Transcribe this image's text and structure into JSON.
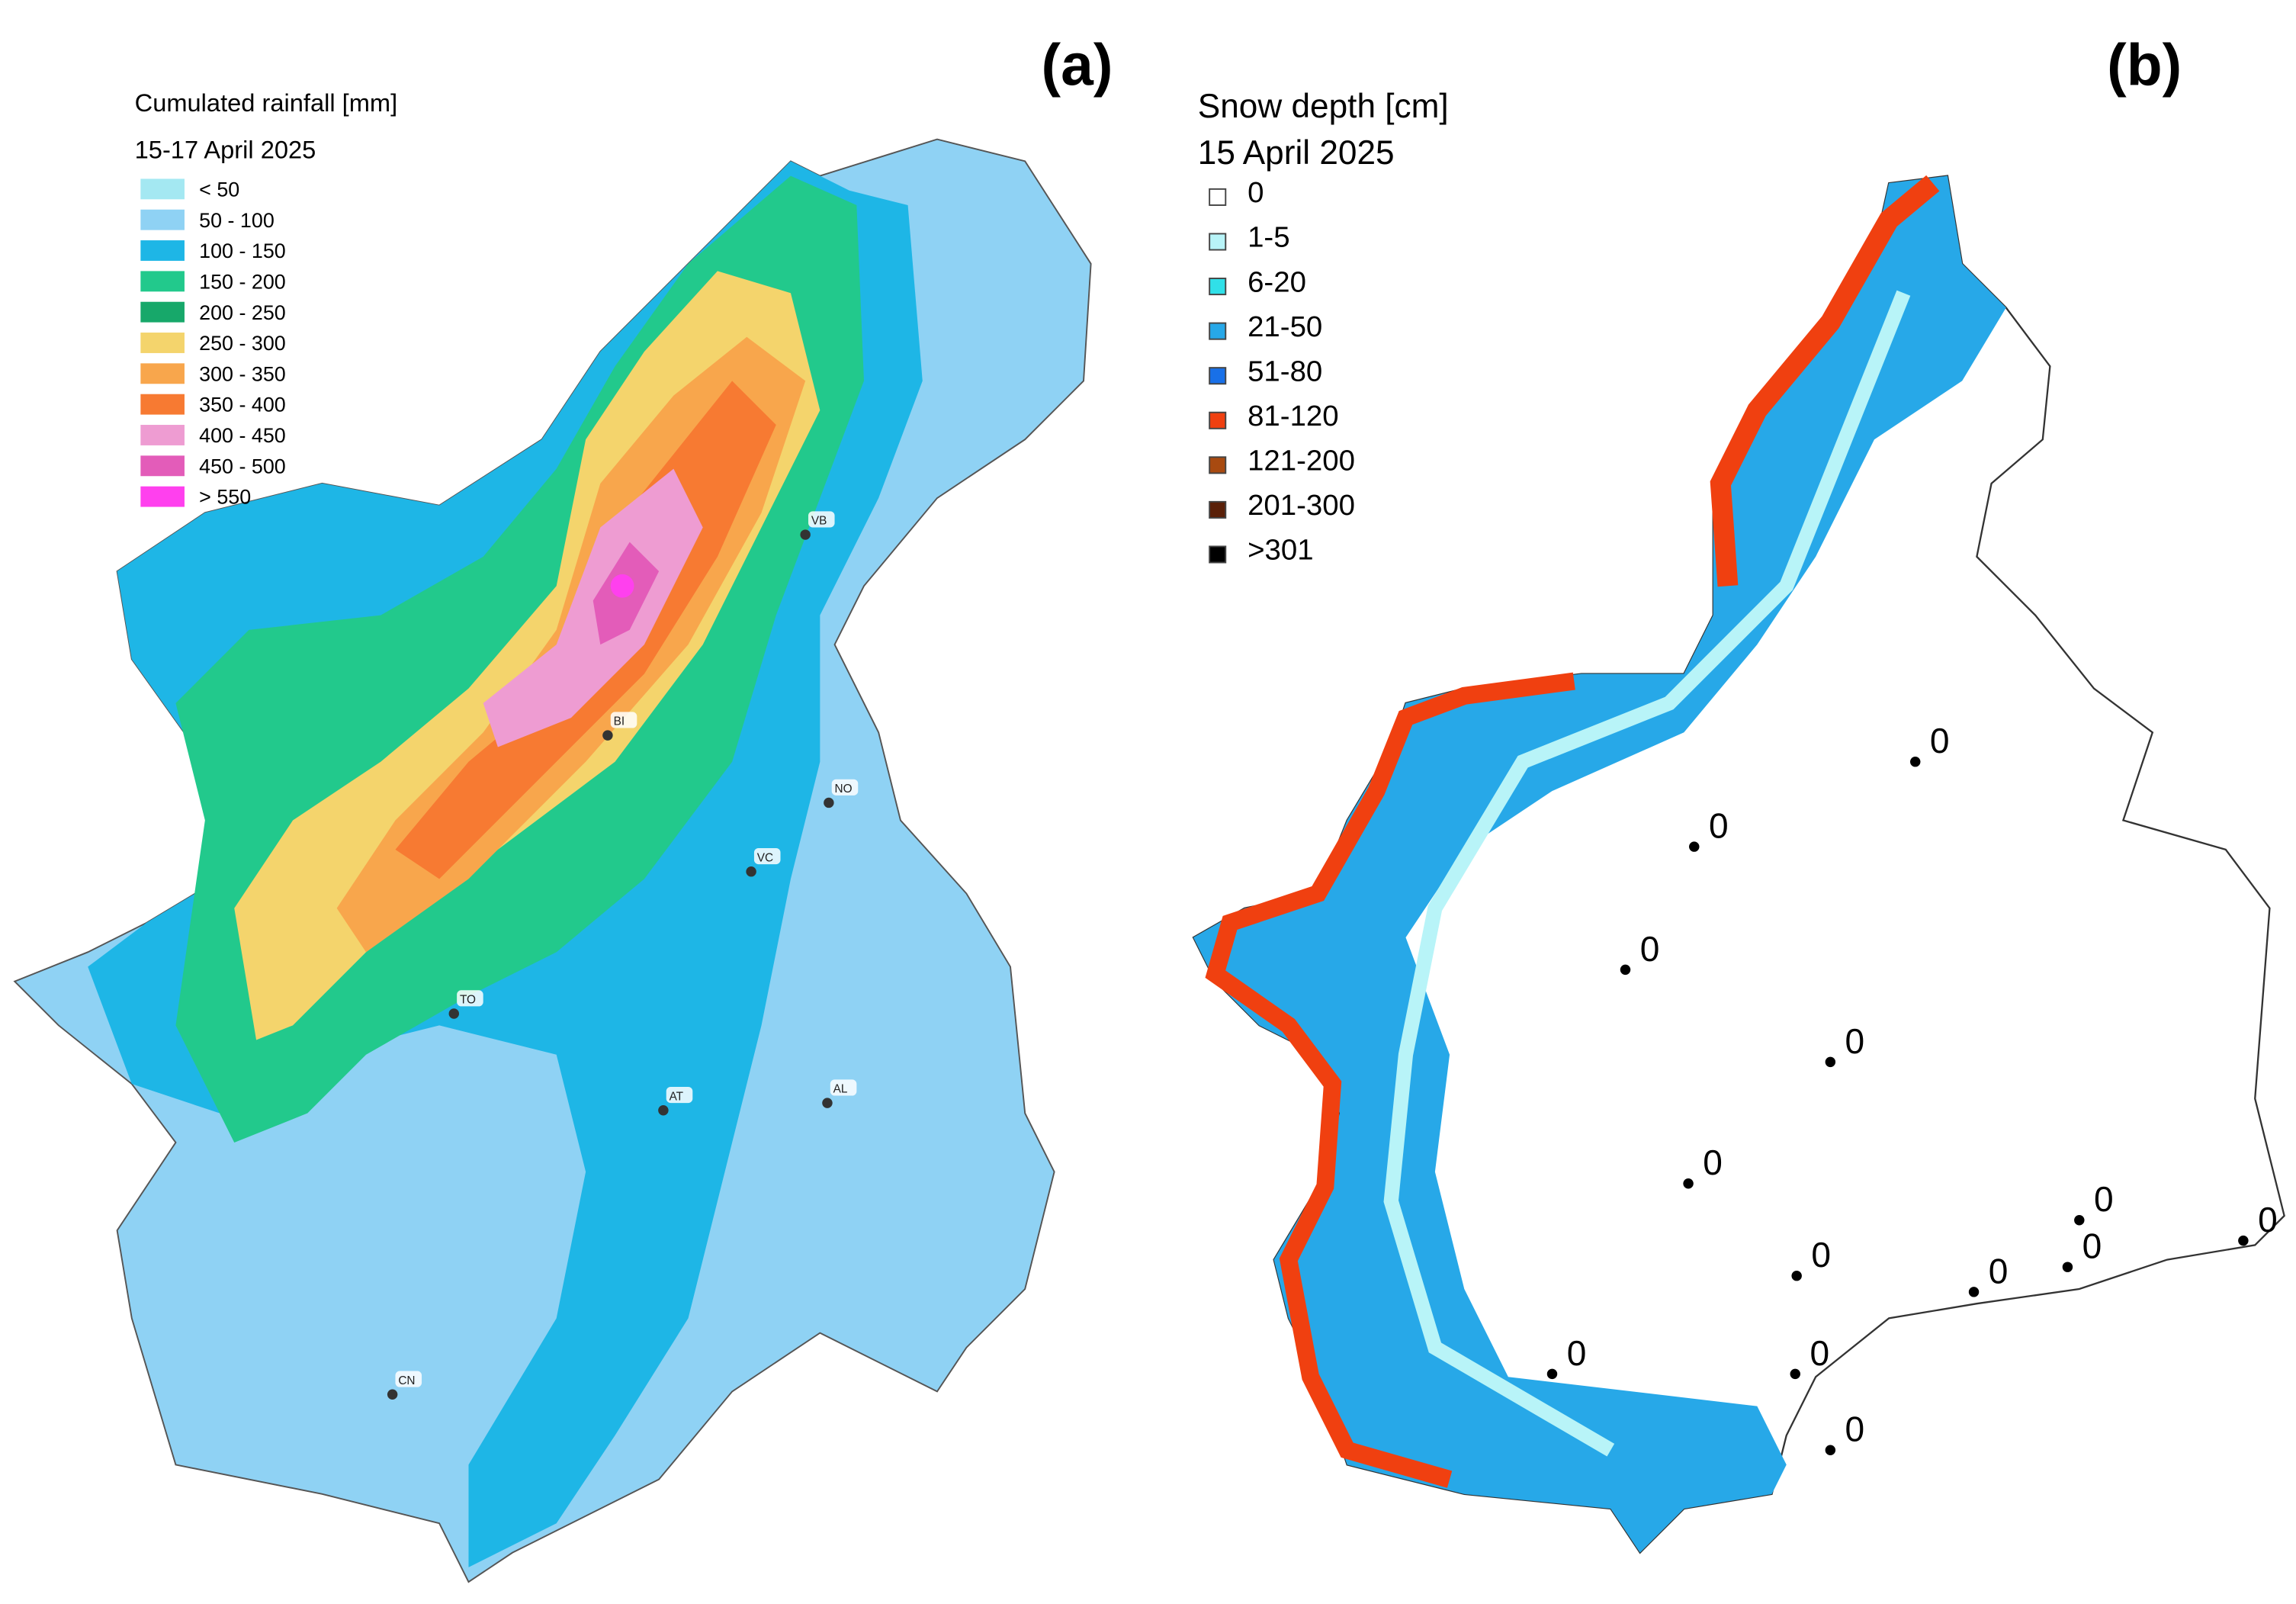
{
  "panel_a": {
    "label": "(a)",
    "title": "Cumulated rainfall [mm]",
    "subtitle": "15-17 April 2025",
    "legend": [
      {
        "label": "< 50",
        "color": "#a4e8f2"
      },
      {
        "label": "50 - 100",
        "color": "#8fd2f4"
      },
      {
        "label": "100 - 150",
        "color": "#1eb6e6"
      },
      {
        "label": "150 - 200",
        "color": "#22c98c"
      },
      {
        "label": "200 - 250",
        "color": "#17a86a"
      },
      {
        "label": "250 - 300",
        "color": "#f4d46c"
      },
      {
        "label": "300 - 350",
        "color": "#f8a64c"
      },
      {
        "label": "350 - 400",
        "color": "#f77a32"
      },
      {
        "label": "400 - 450",
        "color": "#ee9cd2"
      },
      {
        "label": "450 - 500",
        "color": "#e35cb9"
      },
      {
        "label": "> 550",
        "color": "#ff40ee"
      }
    ],
    "cities": [
      "VB",
      "BI",
      "NO",
      "VC",
      "TO",
      "AT",
      "AL",
      "CN"
    ]
  },
  "panel_b": {
    "label": "(b)",
    "title": "Snow depth [cm]",
    "subtitle": "15 April 2025",
    "legend": [
      {
        "label": "0",
        "color": "#ffffff"
      },
      {
        "label": "1-5",
        "color": "#b8f4f8"
      },
      {
        "label": "6-20",
        "color": "#30e0e8"
      },
      {
        "label": "21-50",
        "color": "#27a8e8"
      },
      {
        "label": "51-80",
        "color": "#1870e8"
      },
      {
        "label": "81-120",
        "color": "#f04010"
      },
      {
        "label": "121-200",
        "color": "#a84a10"
      },
      {
        "label": "201-300",
        "color": "#5a2008"
      },
      {
        "label": ">301",
        "color": "#000000"
      }
    ],
    "stations": [
      "0",
      "0",
      "0",
      "0",
      "0",
      "0",
      "0",
      "0",
      "0",
      "0",
      "0",
      "0",
      "0"
    ]
  }
}
